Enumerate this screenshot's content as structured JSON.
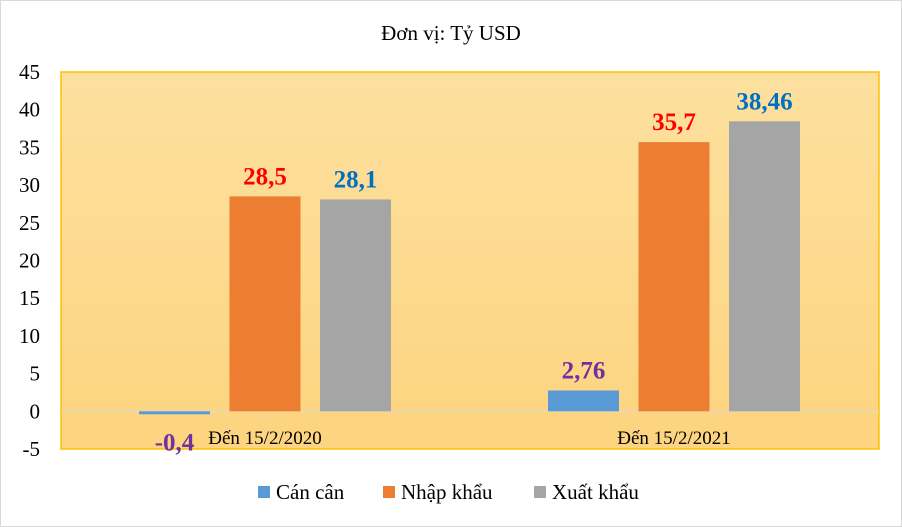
{
  "chart_data": {
    "type": "bar",
    "title": "Đơn vị: Tỷ USD",
    "categories": [
      "Đến 15/2/2020",
      "Đến 15/2/2021"
    ],
    "series": [
      {
        "name": "Cán cân",
        "values": [
          -0.4,
          2.76
        ],
        "labels": [
          "-0,4",
          "2,76"
        ],
        "color": "#5b9bd5",
        "label_color": "#7030a0"
      },
      {
        "name": "Nhập khẩu",
        "values": [
          28.5,
          35.7
        ],
        "labels": [
          "28,5",
          "35,7"
        ],
        "color": "#ed7d31",
        "label_color": "#ff0000"
      },
      {
        "name": "Xuất khẩu",
        "values": [
          28.1,
          38.46
        ],
        "labels": [
          "28,1",
          "38,46"
        ],
        "color": "#a5a5a5",
        "label_color": "#0070c0"
      }
    ],
    "ylim": [
      -5,
      45
    ],
    "yticks": [
      "-5",
      "0",
      "5",
      "10",
      "15",
      "20",
      "25",
      "30",
      "35",
      "40",
      "45"
    ],
    "grid": false,
    "legend_position": "bottom",
    "plot_background": [
      "#fde09f",
      "#fdd47f"
    ],
    "plot_border_color": "#ffc000"
  }
}
